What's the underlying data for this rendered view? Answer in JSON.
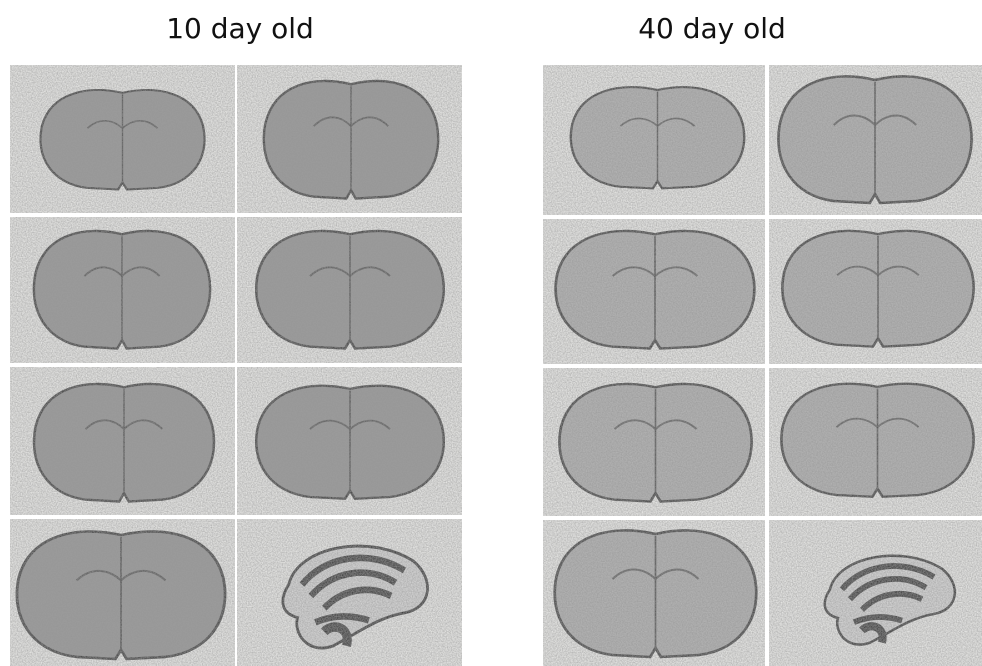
{
  "panels": [
    {
      "title": "10 day old"
    },
    {
      "title": "40 day old"
    }
  ]
}
